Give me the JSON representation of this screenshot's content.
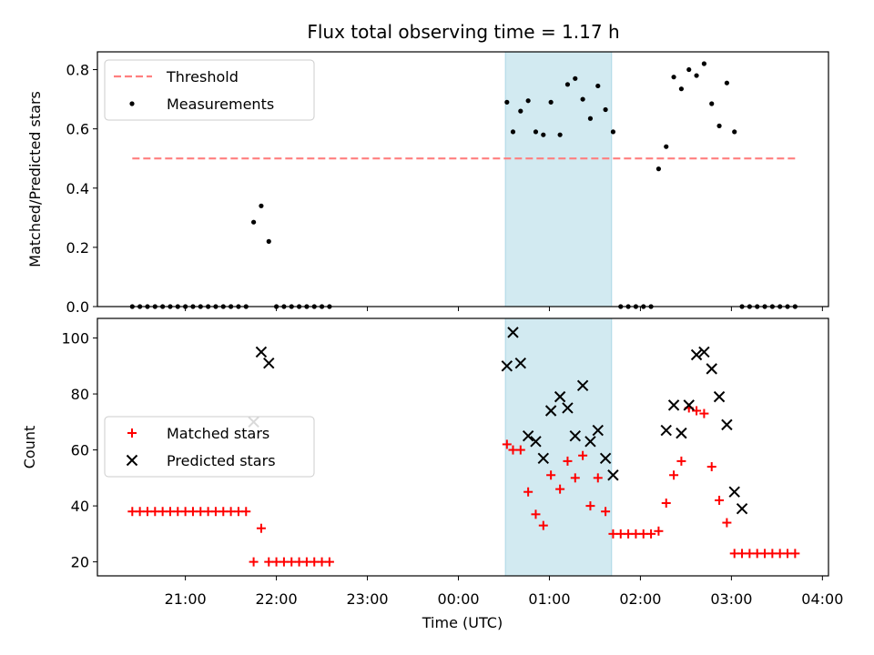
{
  "chart_data": {
    "title": "Flux total observing time = 1.17 h",
    "xlabel": "Time (UTC)",
    "x_ticks": [
      "21:00",
      "22:00",
      "23:00",
      "00:00",
      "01:00",
      "02:00",
      "03:00",
      "04:00"
    ],
    "x_range": [
      "20:02",
      "04:04"
    ],
    "highlight_span": {
      "from": "00:31",
      "to": "01:41",
      "color": "#add8e6"
    },
    "panels": [
      {
        "type": "scatter",
        "ylabel": "Matched/Predicted stars",
        "ylim": [
          0,
          0.86
        ],
        "yticks": [
          "0.0",
          "0.2",
          "0.4",
          "0.6",
          "0.8"
        ],
        "legend_position": "upper-left",
        "series": [
          {
            "name": "Threshold",
            "kind": "dashed-line",
            "color": "#ff7f7f",
            "x": [
              "20:25",
              "03:43"
            ],
            "y": [
              0.5,
              0.5
            ]
          },
          {
            "name": "Measurements",
            "kind": "dots",
            "color": "#000000",
            "x": [
              "20:25",
              "20:30",
              "20:35",
              "20:40",
              "20:45",
              "20:50",
              "20:55",
              "21:00",
              "21:05",
              "21:10",
              "21:15",
              "21:20",
              "21:25",
              "21:30",
              "21:35",
              "21:40",
              "21:45",
              "21:50",
              "21:55",
              "22:00",
              "22:05",
              "22:10",
              "22:15",
              "22:20",
              "22:25",
              "22:30",
              "22:35",
              "00:32",
              "00:36",
              "00:41",
              "00:46",
              "00:51",
              "00:56",
              "01:01",
              "01:07",
              "01:12",
              "01:17",
              "01:22",
              "01:27",
              "01:32",
              "01:37",
              "01:42",
              "01:47",
              "01:52",
              "01:57",
              "02:02",
              "02:07",
              "02:12",
              "02:17",
              "02:22",
              "02:27",
              "02:32",
              "02:37",
              "02:42",
              "02:47",
              "02:52",
              "02:57",
              "03:02",
              "03:07",
              "03:12",
              "03:17",
              "03:22",
              "03:27",
              "03:32",
              "03:37",
              "03:42"
            ],
            "y": [
              0,
              0,
              0,
              0,
              0,
              0,
              0,
              0,
              0,
              0,
              0,
              0,
              0,
              0,
              0,
              0,
              0.285,
              0.34,
              0.22,
              0,
              0,
              0,
              0,
              0,
              0,
              0,
              0,
              0.69,
              0.59,
              0.66,
              0.695,
              0.59,
              0.58,
              0.69,
              0.58,
              0.75,
              0.77,
              0.7,
              0.635,
              0.745,
              0.665,
              0.59,
              0,
              0,
              0,
              0,
              0,
              0.465,
              0.54,
              0.775,
              0.735,
              0.8,
              0.78,
              0.82,
              0.685,
              0.61,
              0.755,
              0.59,
              0,
              0,
              0,
              0,
              0,
              0,
              0,
              0
            ]
          }
        ]
      },
      {
        "type": "scatter",
        "ylabel": "Count",
        "ylim": [
          15,
          107
        ],
        "yticks": [
          "20",
          "40",
          "60",
          "80",
          "100"
        ],
        "legend_position": "center-left",
        "series": [
          {
            "name": "Matched stars",
            "kind": "plus",
            "color": "#ff0000",
            "x": [
              "20:25",
              "20:30",
              "20:35",
              "20:40",
              "20:45",
              "20:50",
              "20:55",
              "21:00",
              "21:05",
              "21:10",
              "21:15",
              "21:20",
              "21:25",
              "21:30",
              "21:35",
              "21:40",
              "21:45",
              "21:50",
              "21:55",
              "22:00",
              "22:05",
              "22:10",
              "22:15",
              "22:20",
              "22:25",
              "22:30",
              "22:35",
              "00:32",
              "00:36",
              "00:41",
              "00:46",
              "00:51",
              "00:56",
              "01:01",
              "01:07",
              "01:12",
              "01:17",
              "01:22",
              "01:27",
              "01:32",
              "01:37",
              "01:42",
              "01:47",
              "01:52",
              "01:57",
              "02:02",
              "02:07",
              "02:12",
              "02:17",
              "02:22",
              "02:27",
              "02:32",
              "02:37",
              "02:42",
              "02:47",
              "02:52",
              "02:57",
              "03:02",
              "03:07",
              "03:12",
              "03:17",
              "03:22",
              "03:27",
              "03:32",
              "03:37",
              "03:42"
            ],
            "y": [
              38,
              38,
              38,
              38,
              38,
              38,
              38,
              38,
              38,
              38,
              38,
              38,
              38,
              38,
              38,
              38,
              20,
              32,
              20,
              20,
              20,
              20,
              20,
              20,
              20,
              20,
              20,
              62,
              60,
              60,
              45,
              37,
              33,
              51,
              46,
              56,
              50,
              58,
              40,
              50,
              38,
              30,
              30,
              30,
              30,
              30,
              30,
              31,
              41,
              51,
              56,
              75,
              74,
              73,
              54,
              42,
              34,
              23,
              23,
              23,
              23,
              23,
              23,
              23,
              23,
              23
            ]
          },
          {
            "name": "Predicted stars",
            "kind": "cross",
            "color": "#000000",
            "x": [
              "21:45",
              "21:50",
              "21:55",
              "00:32",
              "00:36",
              "00:41",
              "00:46",
              "00:51",
              "00:56",
              "01:01",
              "01:07",
              "01:12",
              "01:17",
              "01:22",
              "01:27",
              "01:32",
              "01:37",
              "01:42",
              "02:17",
              "02:22",
              "02:27",
              "02:32",
              "02:37",
              "02:42",
              "02:47",
              "02:52",
              "02:57",
              "03:02",
              "03:07"
            ],
            "y": [
              70,
              95,
              91,
              90,
              102,
              91,
              65,
              63,
              57,
              74,
              79,
              75,
              65,
              83,
              63,
              67,
              57,
              51,
              67,
              76,
              66,
              76,
              94,
              95,
              89,
              79,
              69,
              45,
              39
            ]
          }
        ]
      }
    ]
  }
}
